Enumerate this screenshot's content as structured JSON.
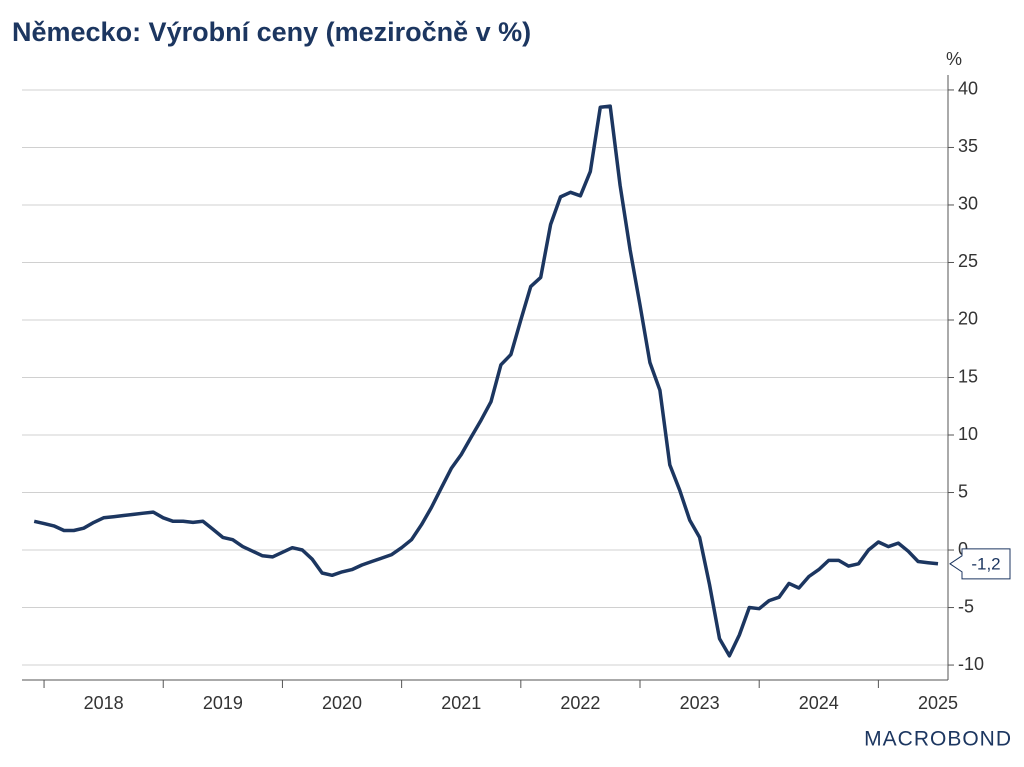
{
  "chart_data": {
    "type": "line",
    "title": "Německo: Výrobní ceny (meziročně v %)",
    "y_unit": "%",
    "logo": "MACROBOND",
    "color": "#1c3660",
    "x": [
      2017.917,
      2018.0,
      2018.083,
      2018.167,
      2018.25,
      2018.333,
      2018.417,
      2018.5,
      2018.583,
      2018.667,
      2018.75,
      2018.833,
      2018.917,
      2019.0,
      2019.083,
      2019.167,
      2019.25,
      2019.333,
      2019.417,
      2019.5,
      2019.583,
      2019.667,
      2019.75,
      2019.833,
      2019.917,
      2020.0,
      2020.083,
      2020.167,
      2020.25,
      2020.333,
      2020.417,
      2020.5,
      2020.583,
      2020.667,
      2020.75,
      2020.833,
      2020.917,
      2021.0,
      2021.083,
      2021.167,
      2021.25,
      2021.333,
      2021.417,
      2021.5,
      2021.583,
      2021.667,
      2021.75,
      2021.833,
      2021.917,
      2022.0,
      2022.083,
      2022.167,
      2022.25,
      2022.333,
      2022.417,
      2022.5,
      2022.583,
      2022.667,
      2022.75,
      2022.833,
      2022.917,
      2023.0,
      2023.083,
      2023.167,
      2023.25,
      2023.333,
      2023.417,
      2023.5,
      2023.583,
      2023.667,
      2023.75,
      2023.833,
      2023.917,
      2024.0,
      2024.083,
      2024.167,
      2024.25,
      2024.333,
      2024.417,
      2024.5,
      2024.583,
      2024.667,
      2024.75,
      2024.833,
      2024.917,
      2025.0,
      2025.083,
      2025.167,
      2025.25,
      2025.333,
      2025.417,
      2025.5
    ],
    "values": [
      2.5,
      2.3,
      2.1,
      1.7,
      1.7,
      1.9,
      2.4,
      2.8,
      2.9,
      3.0,
      3.1,
      3.2,
      3.3,
      2.8,
      2.5,
      2.5,
      2.4,
      2.5,
      1.8,
      1.1,
      0.9,
      0.3,
      -0.1,
      -0.5,
      -0.6,
      -0.2,
      0.2,
      0.0,
      -0.8,
      -2.0,
      -2.2,
      -1.9,
      -1.7,
      -1.3,
      -1.0,
      -0.7,
      -0.4,
      0.2,
      0.9,
      2.2,
      3.7,
      5.4,
      7.1,
      8.3,
      9.8,
      11.3,
      12.9,
      16.1,
      17.0,
      20.0,
      22.9,
      23.7,
      28.3,
      30.7,
      31.1,
      30.8,
      32.9,
      38.5,
      38.6,
      31.7,
      26.1,
      21.3,
      16.3,
      13.9,
      7.4,
      5.2,
      2.6,
      1.1,
      -3.0,
      -7.7,
      -9.2,
      -7.4,
      -5.0,
      -5.1,
      -4.4,
      -4.1,
      -2.9,
      -3.3,
      -2.3,
      -1.7,
      -0.9,
      -0.9,
      -1.4,
      -1.2,
      0.0,
      0.7,
      0.3,
      0.6,
      -0.1,
      -1.0,
      -1.1,
      -1.2
    ],
    "value_labels": [
      null,
      null,
      null,
      null,
      null,
      null,
      null,
      null,
      null,
      null,
      null,
      null,
      null,
      null,
      null,
      null,
      null,
      null,
      null,
      null,
      null,
      null,
      null,
      null,
      null,
      null,
      null,
      null,
      null,
      null,
      null,
      null,
      null,
      null,
      null,
      null,
      null,
      null,
      null,
      null,
      null,
      null,
      null,
      null,
      null,
      null,
      null,
      null,
      null,
      null,
      null,
      null,
      null,
      null,
      null,
      null,
      null,
      null,
      null,
      null,
      null,
      null,
      null,
      null,
      null,
      null,
      null,
      null,
      null,
      null,
      null,
      null,
      null,
      null,
      null,
      null,
      null,
      null,
      null,
      null,
      null,
      null,
      null,
      null,
      null,
      null,
      null,
      null,
      null,
      null,
      null,
      "-1,2"
    ],
    "xlim": [
      2017.815,
      2025.584
    ],
    "xticks": [
      2018,
      2019,
      2020,
      2021,
      2022,
      2023,
      2024,
      2025
    ],
    "ylim": [
      -11.3,
      41.3
    ],
    "yticks": [
      -10,
      -5,
      0,
      5,
      10,
      15,
      20,
      25,
      30,
      35,
      40
    ],
    "grid": true
  }
}
